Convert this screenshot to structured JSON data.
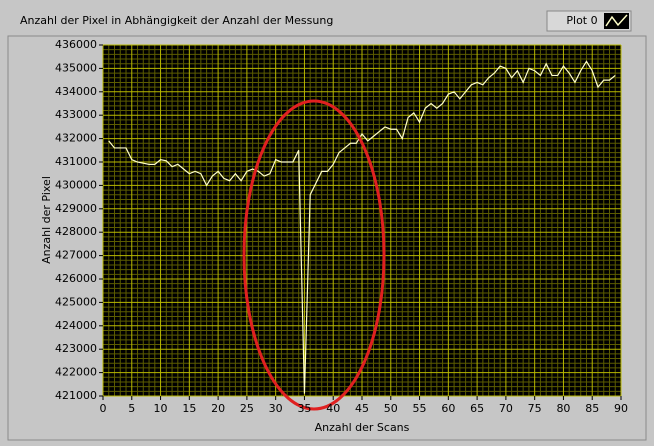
{
  "chart_data": {
    "type": "line",
    "title": "Anzahl der Pixel in Abhängigkeit der Anzahl der Messung",
    "x_label": "Anzahl der Scans",
    "y_label": "Anzahl der Pixel",
    "x": [
      1,
      2,
      3,
      4,
      5,
      6,
      7,
      8,
      9,
      10,
      11,
      12,
      13,
      14,
      15,
      16,
      17,
      18,
      19,
      20,
      21,
      22,
      23,
      24,
      25,
      26,
      27,
      28,
      29,
      30,
      31,
      32,
      33,
      34,
      35,
      36,
      37,
      38,
      39,
      40,
      41,
      42,
      43,
      44,
      45,
      46,
      47,
      48,
      49,
      50,
      51,
      52,
      53,
      54,
      55,
      56,
      57,
      58,
      59,
      60,
      61,
      62,
      63,
      64,
      65,
      66,
      67,
      68,
      69,
      70,
      71,
      72,
      73,
      74,
      75,
      76,
      77,
      78,
      79,
      80,
      81,
      82,
      83,
      84,
      85,
      86,
      87,
      88,
      89
    ],
    "series": [
      {
        "name": "Plot 0",
        "color": "#ffffc8",
        "values": [
          431900,
          431600,
          431600,
          431600,
          431100,
          431000,
          430950,
          430900,
          430900,
          431100,
          431050,
          430800,
          430900,
          430700,
          430500,
          430600,
          430500,
          430000,
          430400,
          430600,
          430300,
          430200,
          430500,
          430200,
          430600,
          430700,
          430600,
          430400,
          430500,
          431100,
          431000,
          431000,
          431000,
          431500,
          421100,
          429600,
          430100,
          430600,
          430600,
          430900,
          431400,
          431600,
          431800,
          431800,
          432200,
          431900,
          432100,
          432300,
          432500,
          432400,
          432400,
          432000,
          432900,
          433100,
          432700,
          433300,
          433500,
          433300,
          433500,
          433900,
          434000,
          433700,
          434000,
          434300,
          434400,
          434300,
          434600,
          434800,
          435100,
          435000,
          434600,
          434900,
          434400,
          435000,
          434900,
          434700,
          435200,
          434700,
          434700,
          435100,
          434800,
          434400,
          434900,
          435300,
          434900,
          434200,
          434500,
          434500,
          434700
        ]
      }
    ],
    "xlim": [
      0,
      90
    ],
    "xticks": [
      0,
      5,
      10,
      15,
      20,
      25,
      30,
      35,
      40,
      45,
      50,
      55,
      60,
      65,
      70,
      75,
      80,
      85,
      90
    ],
    "ylim": [
      421000,
      436000
    ],
    "yticks": [
      421000,
      422000,
      423000,
      424000,
      425000,
      426000,
      427000,
      428000,
      429000,
      430000,
      431000,
      432000,
      433000,
      434000,
      435000,
      436000
    ],
    "grid": true,
    "minor_grid_divisions": 5,
    "legend": "top-right",
    "background": "#000000"
  }
}
